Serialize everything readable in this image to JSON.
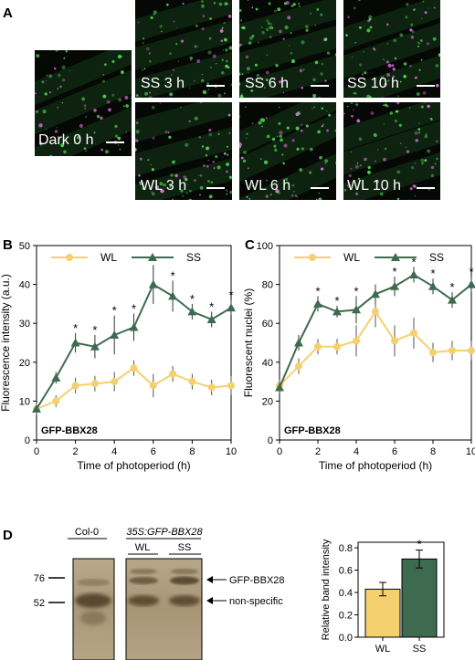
{
  "panel_labels": {
    "a": "A",
    "b": "B",
    "c": "C",
    "d": "D"
  },
  "micrographs": [
    {
      "id": "dark0",
      "label": "Dark 0 h"
    },
    {
      "id": "ss3",
      "label": "SS 3 h"
    },
    {
      "id": "ss6",
      "label": "SS 6 h"
    },
    {
      "id": "ss10",
      "label": "SS 10 h"
    },
    {
      "id": "wl3",
      "label": "WL 3 h"
    },
    {
      "id": "wl6",
      "label": "WL 6 h"
    },
    {
      "id": "wl10",
      "label": "WL 10 h"
    }
  ],
  "colors": {
    "wl": "#f5d06f",
    "ss": "#3e6a4f",
    "grid": "#000000"
  },
  "chart_data": [
    {
      "id": "B",
      "type": "line",
      "ylabel": "Fluorescence intensity (a.u.)",
      "xlabel": "Time of photoperiod (h)",
      "annotation": "GFP-BBX28",
      "xlim": [
        0,
        10
      ],
      "ylim": [
        0,
        50
      ],
      "xticks": [
        "0",
        "2",
        "4",
        "6",
        "8",
        "10"
      ],
      "yticks": [
        "0",
        "10",
        "20",
        "30",
        "40",
        "50"
      ],
      "legend": [
        "WL",
        "SS"
      ],
      "series": [
        {
          "name": "WL",
          "x": [
            0,
            1,
            2,
            3,
            4,
            5,
            6,
            7,
            8,
            9,
            10
          ],
          "y": [
            8,
            10,
            14,
            14.5,
            15,
            18.5,
            14,
            17,
            15,
            13.5,
            14
          ],
          "err": [
            1.5,
            1.5,
            2,
            2,
            2.5,
            2,
            3,
            2,
            2,
            2,
            2.5
          ]
        },
        {
          "name": "SS",
          "x": [
            0,
            1,
            2,
            3,
            4,
            5,
            6,
            7,
            8,
            9,
            10
          ],
          "y": [
            8,
            16,
            25,
            24,
            27,
            29,
            40,
            37,
            33,
            31,
            34
          ],
          "err": [
            1,
            1.5,
            2.5,
            3,
            5,
            3.5,
            5,
            4,
            2,
            2,
            2
          ],
          "signif": [
            false,
            false,
            true,
            true,
            true,
            true,
            true,
            true,
            true,
            true,
            true
          ]
        }
      ],
      "signif_mark": "*"
    },
    {
      "id": "C",
      "type": "line",
      "ylabel": "Fluorescent nuclei (%)",
      "xlabel": "Time of photoperiod (h)",
      "annotation": "GFP-BBX28",
      "xlim": [
        0,
        10
      ],
      "ylim": [
        0,
        100
      ],
      "xticks": [
        "0",
        "2",
        "4",
        "6",
        "8",
        "10"
      ],
      "yticks": [
        "0",
        "20",
        "40",
        "60",
        "80",
        "100"
      ],
      "legend": [
        "WL",
        "SS"
      ],
      "series": [
        {
          "name": "WL",
          "x": [
            0,
            1,
            2,
            3,
            4,
            5,
            6,
            7,
            8,
            9,
            10
          ],
          "y": [
            28,
            38,
            48,
            48,
            51,
            66,
            51,
            55,
            45,
            46,
            46
          ],
          "err": [
            3,
            4,
            4,
            4,
            8,
            8,
            8,
            8,
            5,
            5,
            5
          ]
        },
        {
          "name": "SS",
          "x": [
            0,
            1,
            2,
            3,
            4,
            5,
            6,
            7,
            8,
            9,
            10
          ],
          "y": [
            27,
            50,
            70,
            66,
            67,
            75,
            79,
            85,
            79,
            72,
            80
          ],
          "err": [
            3,
            4,
            4,
            3,
            7,
            5,
            5,
            4,
            4,
            4,
            4
          ],
          "signif": [
            false,
            false,
            true,
            true,
            true,
            false,
            true,
            true,
            true,
            true,
            true
          ]
        }
      ],
      "signif_mark": "*"
    },
    {
      "id": "D-bar",
      "type": "bar",
      "ylabel": "Relative band intensity",
      "categories": [
        "WL",
        "SS"
      ],
      "values": [
        0.43,
        0.7
      ],
      "err": [
        0.06,
        0.08
      ],
      "ylim": [
        0,
        0.85
      ],
      "yticks": [
        "0.0",
        "0.2",
        "0.4",
        "0.6",
        "0.8"
      ],
      "signif": [
        false,
        true
      ],
      "signif_mark": "*"
    }
  ],
  "blot": {
    "col0": "Col-0",
    "construct": "35S:GFP-BBX28",
    "lane_wl": "WL",
    "lane_ss": "SS",
    "marker_76": "76",
    "marker_52": "52",
    "band_gfp": "GFP-BBX28",
    "band_nonspecific": "non-specific"
  }
}
